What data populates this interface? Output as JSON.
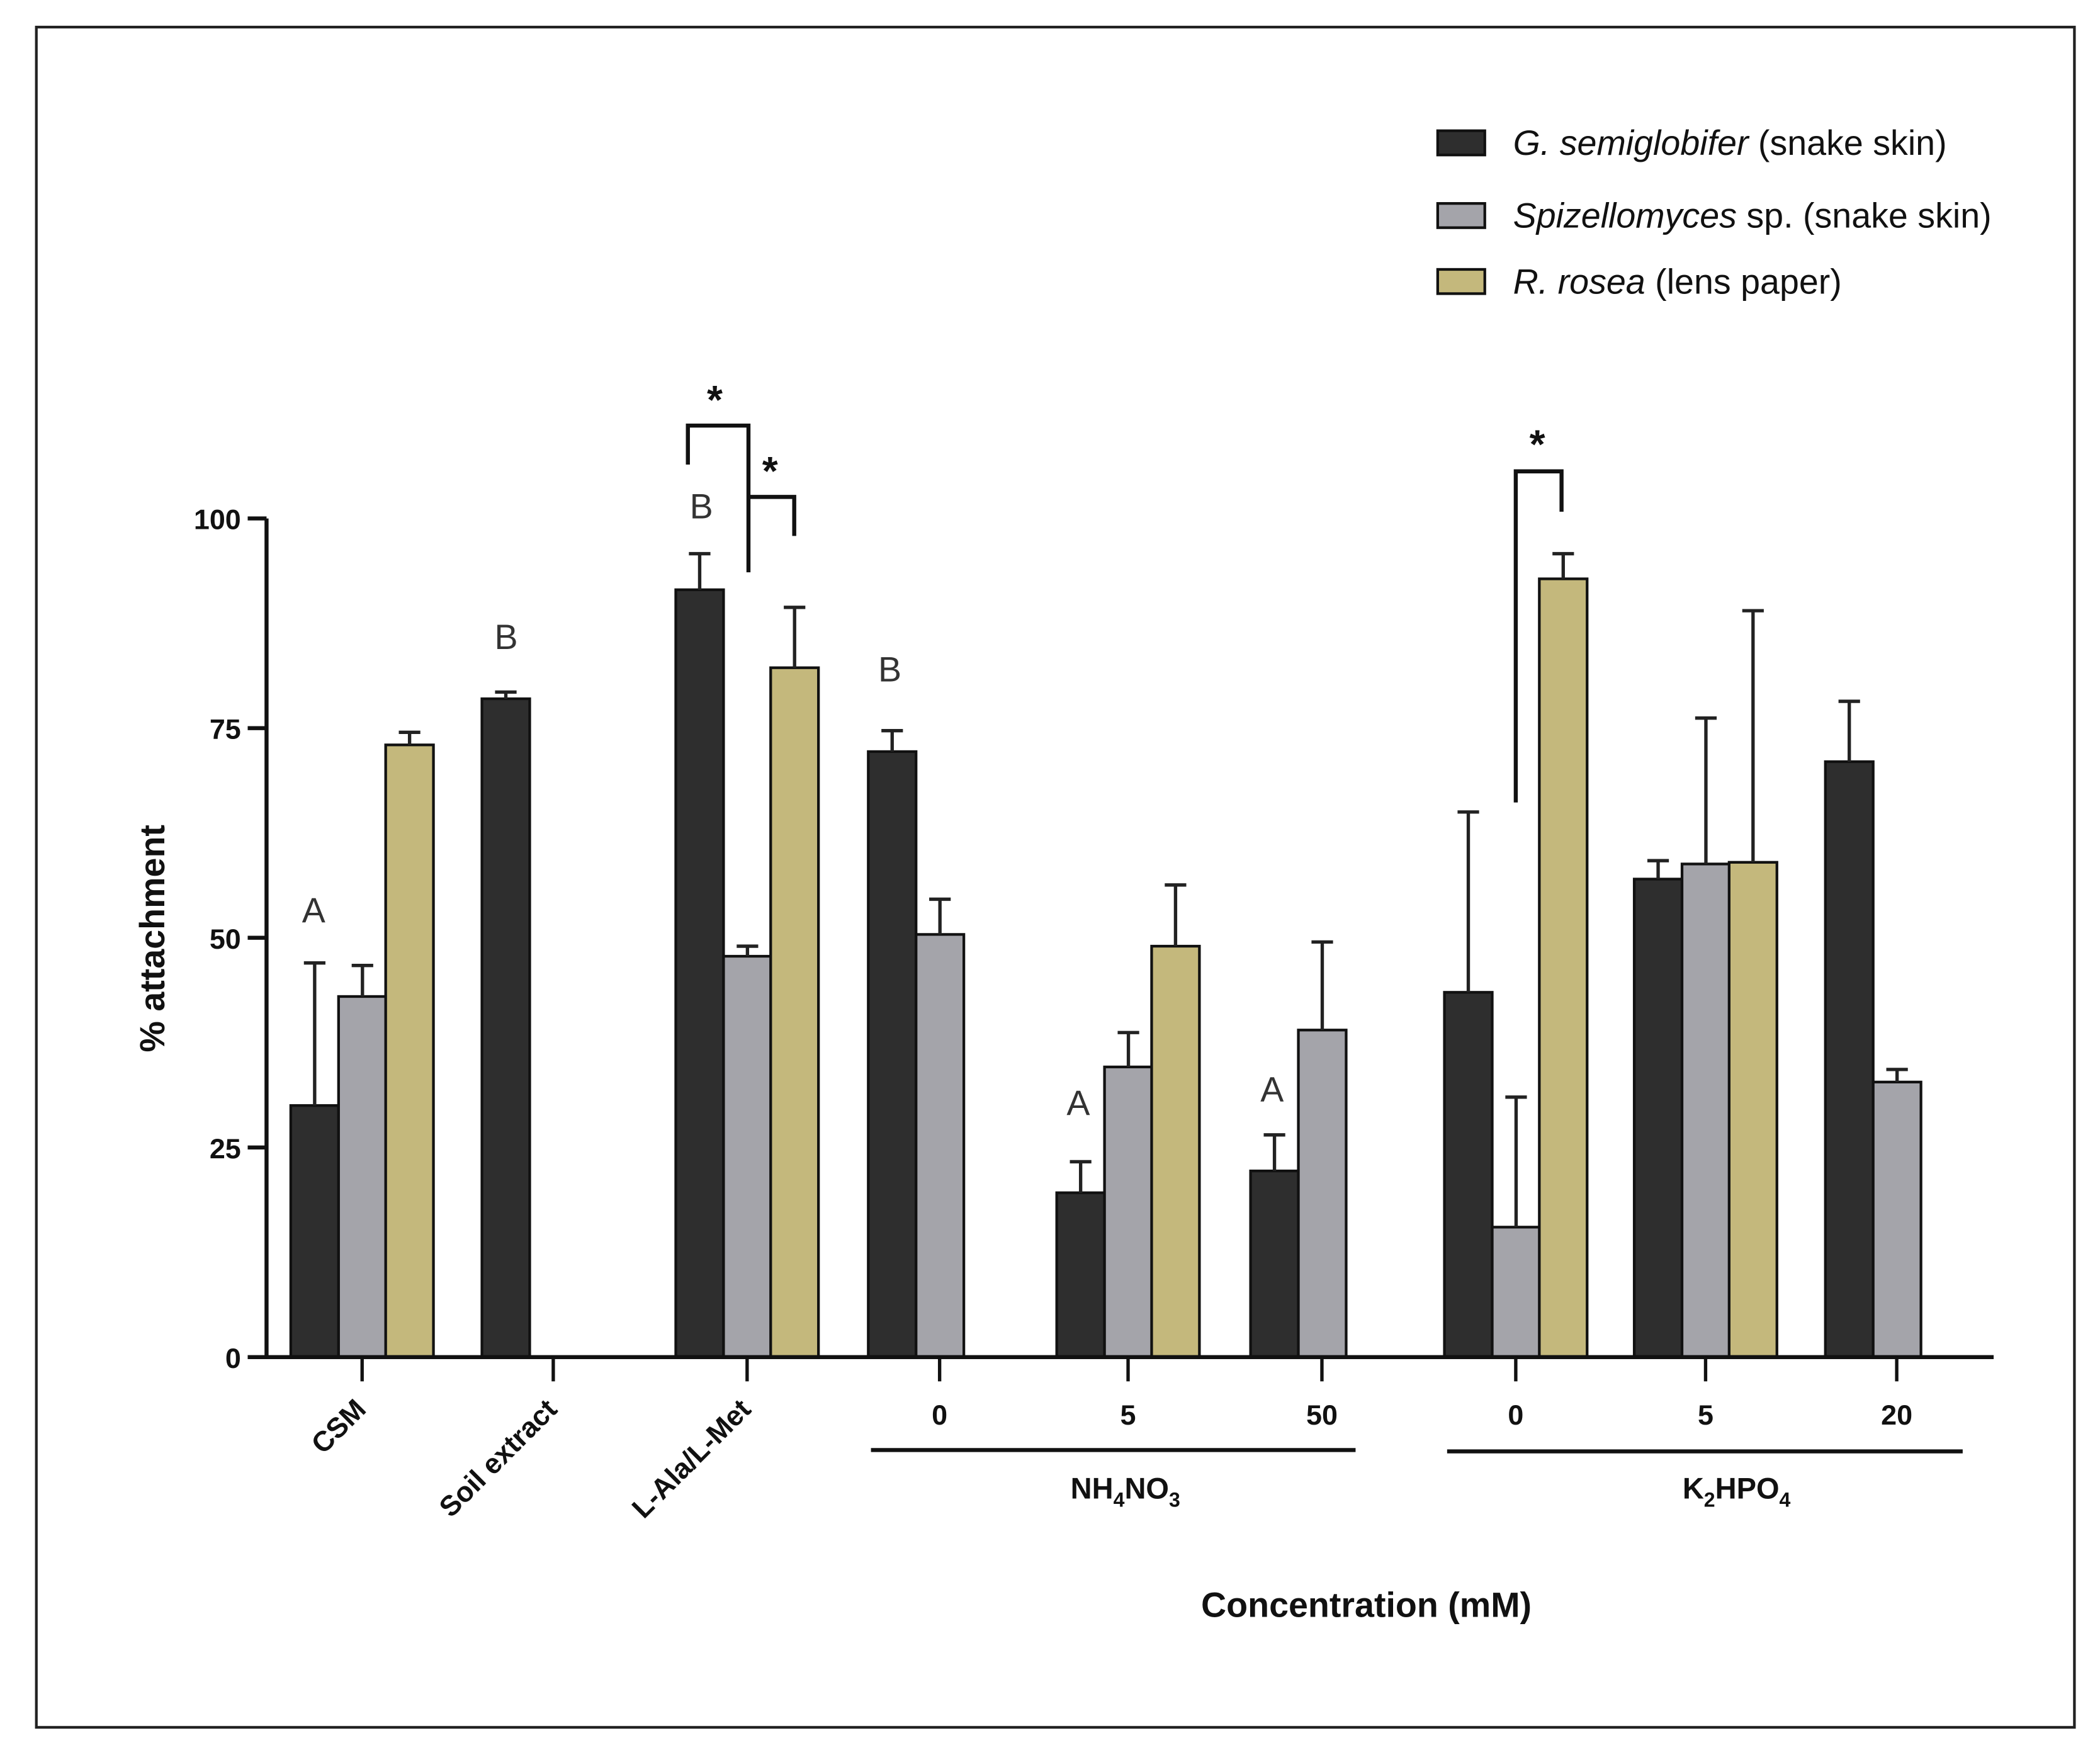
{
  "chart_data": {
    "type": "bar",
    "title": "",
    "xlabel": "Concentration (mM)",
    "ylabel": "% attachment",
    "ylim": [
      0,
      100
    ],
    "yticks": [
      "0",
      "25",
      "50",
      "75",
      "100"
    ],
    "grid": false,
    "legend_placement": "top-right",
    "categories": [
      "CSM",
      "Soil extract",
      "L-Ala/L-Met",
      "0",
      "5",
      "50",
      "0",
      "5",
      "20"
    ],
    "category_groups": [
      {
        "label_main": "NH",
        "sub1": "4",
        "mid": "NO",
        "sub2": "3",
        "label": "NH4NO3",
        "members": [
          3,
          4,
          5
        ]
      },
      {
        "label_main": "K",
        "sub1": "2",
        "mid": "HPO",
        "sub2": "4",
        "label": "K2HPO4",
        "members": [
          6,
          7,
          8
        ]
      }
    ],
    "series": [
      {
        "name_italic": "G. semiglobifer",
        "name_rest": " (snake skin)",
        "color": "#2e2e2e",
        "values": [
          30,
          78.5,
          91.5,
          72.2,
          19.6,
          22.2,
          43.5,
          57,
          71
        ],
        "errors": [
          17,
          0.8,
          4.3,
          2.5,
          3.7,
          4.3,
          21.5,
          2.2,
          7.2
        ]
      },
      {
        "name_italic": "Spizellomyces",
        "name_rest": " sp. (snake skin)",
        "color": "#a4a4aa",
        "values": [
          43,
          null,
          47.8,
          50.4,
          34.6,
          39,
          15.5,
          58.8,
          32.8
        ],
        "errors": [
          3.7,
          null,
          1.2,
          4.2,
          4.1,
          10.5,
          15.5,
          17.4,
          1.5
        ]
      },
      {
        "name_italic": "R. rosea",
        "name_rest": " (lens paper)",
        "color": "#c4b87c",
        "values": [
          73,
          null,
          82.2,
          null,
          49,
          null,
          92.8,
          59,
          null
        ],
        "errors": [
          1.5,
          null,
          7.2,
          null,
          7.3,
          null,
          3,
          30,
          null
        ]
      }
    ],
    "letter_annotations": [
      {
        "category": 0,
        "text": "A"
      },
      {
        "category": 1,
        "text": "B"
      },
      {
        "category": 2,
        "text": "B"
      },
      {
        "category": 3,
        "text": "B"
      },
      {
        "category": 4,
        "text": "A"
      },
      {
        "category": 5,
        "text": "A"
      }
    ],
    "significance": [
      {
        "category": 2,
        "between": [
          "G. semiglobifer",
          "Spizellomyces"
        ],
        "text": "*"
      },
      {
        "category": 2,
        "between": [
          "Spizellomyces",
          "R. rosea"
        ],
        "text": "*"
      },
      {
        "category": 6,
        "between": [
          "Spizellomyces",
          "R. rosea"
        ],
        "text": "*"
      }
    ]
  }
}
